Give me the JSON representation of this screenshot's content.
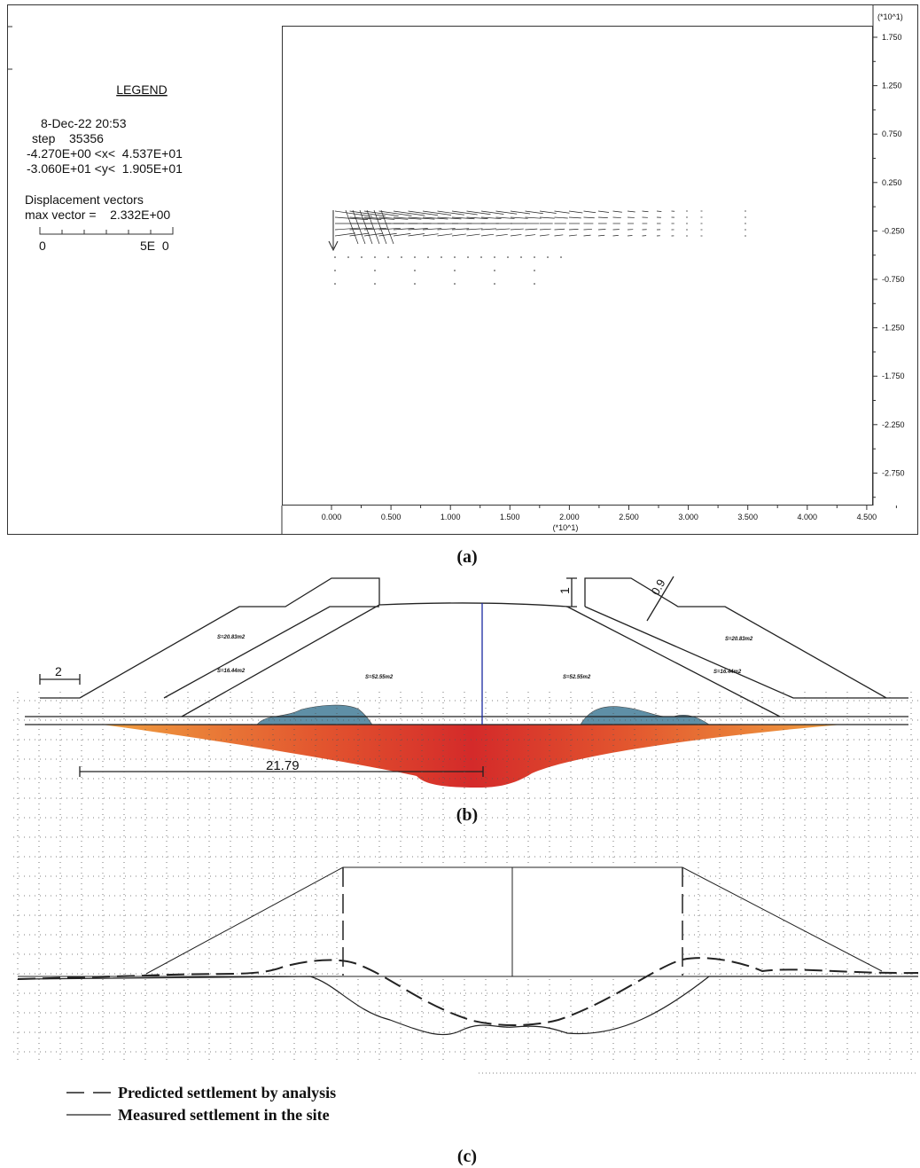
{
  "panel_a": {
    "caption": "(a)",
    "legend": {
      "title": "LEGEND",
      "date": "8-Dec-22  20:53",
      "step": "step    35356",
      "x_range": "-4.270E+00 <x<  4.537E+01",
      "y_range": "-3.060E+01 <y<  1.905E+01",
      "vectors_title": "Displacement vectors",
      "max_vector": "max vector =    2.332E+00",
      "scale_start": "0",
      "scale_end": "5E  0"
    },
    "y_axis_unit": "(*10^1)",
    "y_ticks": [
      "1.750",
      "1.250",
      "0.750",
      "0.250",
      "-0.250",
      "-0.750",
      "-1.250",
      "-1.750",
      "-2.250",
      "-2.750"
    ],
    "x_ticks": [
      "0.000",
      "0.500",
      "1.000",
      "1.500",
      "2.000",
      "2.500",
      "3.000",
      "3.500",
      "4.000",
      "4.500"
    ],
    "x_axis_unit": "(*10^1)"
  },
  "panel_b": {
    "caption": "(b)",
    "areas_left": [
      "S=20.83m2",
      "S=16.44m2",
      "S=52.55m2"
    ],
    "areas_right": [
      "S=52.55m2",
      "S=20.83m2",
      "S=16.44m2"
    ],
    "berm_width": "2",
    "step_height": "1",
    "slope": "0.9",
    "half_width": "21.79"
  },
  "panel_c": {
    "caption": "(c)",
    "legend": [
      "Predicted settlement by analysis",
      "Measured settlement in the site"
    ]
  }
}
